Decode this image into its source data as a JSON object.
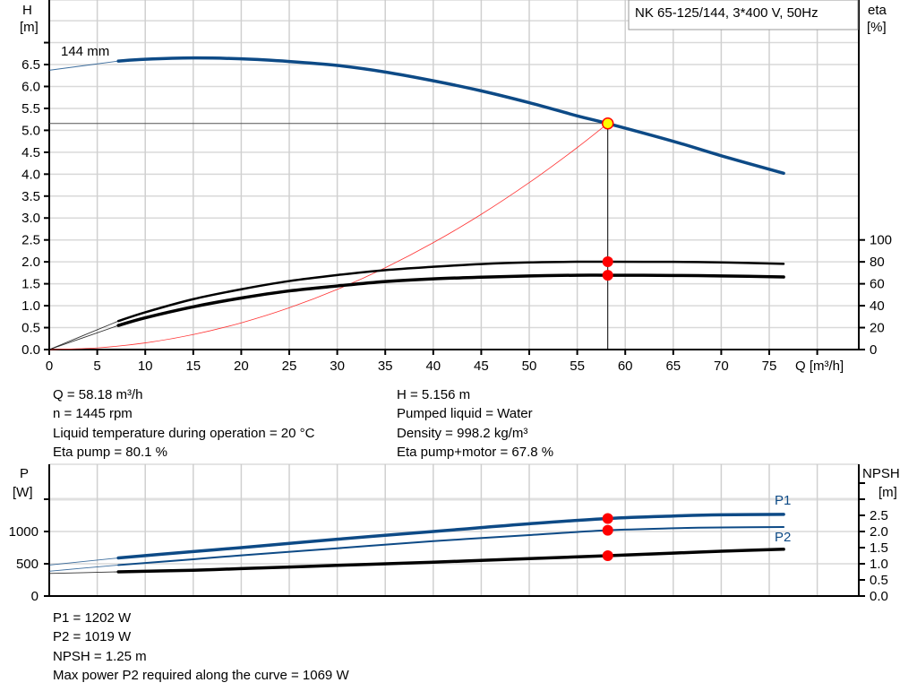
{
  "chart_data": [
    {
      "type": "line",
      "title": "NK 65-125/144, 3*400 V, 50Hz",
      "xlabel": "Q [m³/h]",
      "ylabel": "H [m]",
      "ylabel_left": [
        "H",
        "[m]"
      ],
      "ylabel_right": [
        "eta",
        "[%]"
      ],
      "xlim": [
        0,
        84
      ],
      "ylim": [
        0,
        8
      ],
      "y2lim": [
        0,
        320
      ],
      "grid": true,
      "x_ticks": [
        "0",
        "5",
        "10",
        "15",
        "20",
        "25",
        "30",
        "35",
        "40",
        "45",
        "50",
        "55",
        "60",
        "65",
        "70",
        "75"
      ],
      "y_ticks": [
        "0.0",
        "0.5",
        "1.0",
        "1.5",
        "2.0",
        "2.5",
        "3.0",
        "3.5",
        "4.0",
        "4.5",
        "5.0",
        "5.5",
        "6.0",
        "6.5"
      ],
      "y2_ticks": [
        "0",
        "20",
        "40",
        "60",
        "80",
        "100"
      ],
      "curve_label": "144 mm",
      "series": [
        {
          "name": "H",
          "axis": "left",
          "color": "#0d4a86",
          "x": [
            0,
            7.2,
            10,
            15,
            20,
            25,
            30,
            35,
            40,
            45,
            50,
            55,
            58.18,
            65,
            70,
            76.5
          ],
          "y": [
            6.37,
            6.58,
            6.62,
            6.65,
            6.63,
            6.57,
            6.48,
            6.33,
            6.13,
            5.9,
            5.63,
            5.33,
            5.156,
            4.75,
            4.42,
            4.02
          ]
        },
        {
          "name": "Eta pump",
          "axis": "right",
          "color": "#000000",
          "x": [
            0,
            7.2,
            10,
            15,
            20,
            25,
            30,
            35,
            40,
            45,
            50,
            55,
            58.18,
            65,
            70,
            76.5
          ],
          "y": [
            0,
            26,
            34,
            46,
            55,
            62.5,
            68,
            72.5,
            75.5,
            78,
            79.5,
            80.1,
            80.1,
            80,
            79.5,
            78.2
          ]
        },
        {
          "name": "Eta pump+motor",
          "axis": "right",
          "color": "#000000",
          "x": [
            0,
            7.2,
            10,
            15,
            20,
            25,
            30,
            35,
            40,
            45,
            50,
            55,
            58.18,
            65,
            70,
            76.5
          ],
          "y": [
            0,
            22,
            29,
            39,
            47,
            53.5,
            58,
            62,
            64.5,
            66,
            67.2,
            67.8,
            67.8,
            67.6,
            67.2,
            66.2
          ]
        },
        {
          "name": "System curve",
          "axis": "left",
          "color": "#ff3333",
          "x": [
            0,
            5,
            10,
            15,
            20,
            25,
            30,
            35,
            40,
            45,
            50,
            55,
            58.18
          ],
          "y": [
            0,
            0.038,
            0.152,
            0.343,
            0.609,
            0.952,
            1.371,
            1.866,
            2.437,
            3.084,
            3.808,
            4.607,
            5.156
          ]
        }
      ],
      "operating_point": {
        "x": 58.18,
        "y": 5.156,
        "eta_pump": 80.1,
        "eta_pump_motor": 67.8
      }
    },
    {
      "type": "line",
      "ylabel_left": [
        "P",
        "[W]"
      ],
      "ylabel_right": [
        "NPSH",
        "[m]"
      ],
      "xlim": [
        0,
        84
      ],
      "ylim": [
        0,
        2050
      ],
      "y2lim": [
        0,
        4.1
      ],
      "grid": true,
      "y_ticks": [
        "0",
        "500",
        "1000"
      ],
      "y2_ticks": [
        "0.0",
        "0.5",
        "1.0",
        "1.5",
        "2.0",
        "2.5"
      ],
      "series": [
        {
          "name": "P1",
          "axis": "left",
          "color": "#0d4a86",
          "x": [
            0,
            7.2,
            15,
            20,
            30,
            40,
            45,
            50,
            58.18,
            65,
            70,
            76.5
          ],
          "y": [
            480,
            590,
            690,
            750,
            880,
            1000,
            1060,
            1120,
            1202,
            1240,
            1258,
            1265
          ]
        },
        {
          "name": "P2",
          "axis": "left",
          "color": "#0d4a86",
          "x": [
            0,
            7.2,
            15,
            20,
            30,
            40,
            50,
            58.18,
            65,
            70,
            76.5
          ],
          "y": [
            385,
            480,
            570,
            630,
            740,
            850,
            945,
            1019,
            1050,
            1063,
            1069
          ]
        },
        {
          "name": "NPSH",
          "axis": "right",
          "color": "#000000",
          "x": [
            0,
            7.2,
            15,
            20,
            30,
            40,
            50,
            58.18,
            65,
            70,
            76.5
          ],
          "y": [
            0.7,
            0.75,
            0.8,
            0.85,
            0.95,
            1.05,
            1.16,
            1.25,
            1.33,
            1.39,
            1.45
          ]
        }
      ],
      "operating_point": {
        "x": 58.18,
        "P1": 1202,
        "P2": 1019,
        "NPSH": 1.25
      }
    }
  ],
  "info_top": {
    "left": [
      "Q = 58.18 m³/h",
      "n = 1445 rpm",
      "Liquid temperature during operation = 20 °C",
      "Eta pump = 80.1 %"
    ],
    "right": [
      "H = 5.156 m",
      "Pumped liquid = Water",
      "Density = 998.2 kg/m³",
      "Eta pump+motor = 67.8 %"
    ]
  },
  "info_bottom": [
    "P1 = 1202 W",
    "P2 = 1019 W",
    "NPSH = 1.25 m",
    "Max power P2 required along the curve = 1069 W"
  ]
}
